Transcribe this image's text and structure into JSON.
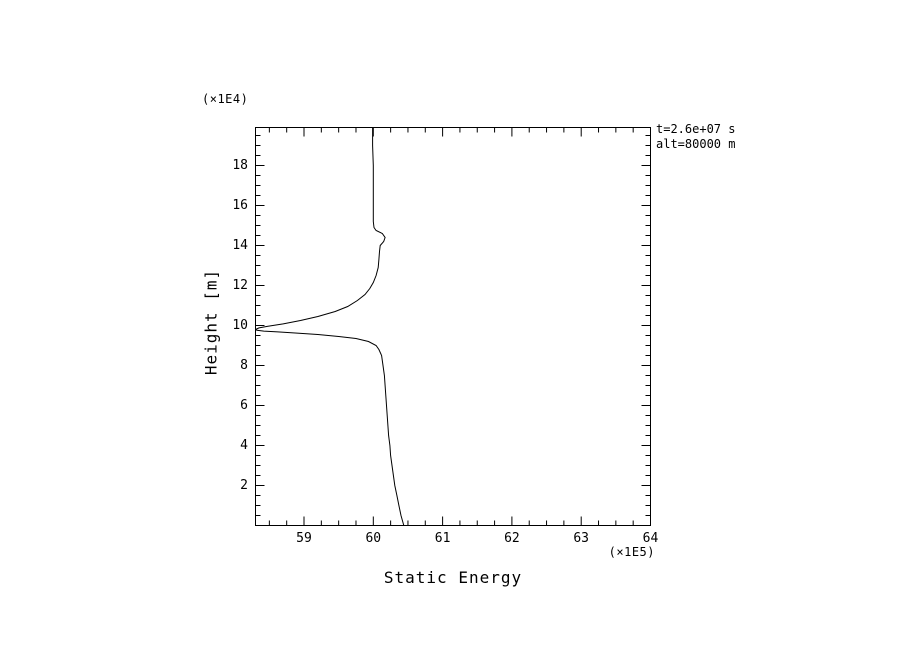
{
  "page": {
    "background": "#ffffff",
    "text_color": "#000000"
  },
  "chart_data": {
    "type": "line",
    "title": "",
    "xlabel": "Static Energy",
    "ylabel": "Height [m]",
    "x_scale_label": "(×1E5)",
    "y_scale_label": "(×1E4)",
    "xlim": [
      58.3,
      64.0
    ],
    "ylim": [
      0.0,
      19.9
    ],
    "x_ticks": [
      59,
      60,
      61,
      62,
      63,
      64
    ],
    "y_ticks": [
      2,
      4,
      6,
      8,
      10,
      12,
      14,
      16,
      18
    ],
    "x_minor_step": 0.25,
    "y_minor_step": 0.5,
    "grid": false,
    "legend": "none",
    "line_color": "#000000",
    "annotations": [
      "t=2.6e+07 s",
      "alt=80000 m"
    ],
    "series": [
      {
        "name": "static-energy-profile",
        "color": "#000000",
        "points": [
          [
            60.44,
            0.0
          ],
          [
            60.4,
            0.5
          ],
          [
            60.37,
            1.0
          ],
          [
            60.34,
            1.5
          ],
          [
            60.31,
            2.0
          ],
          [
            60.29,
            2.5
          ],
          [
            60.27,
            3.0
          ],
          [
            60.25,
            3.5
          ],
          [
            60.24,
            4.0
          ],
          [
            60.22,
            4.5
          ],
          [
            60.21,
            5.0
          ],
          [
            60.2,
            5.5
          ],
          [
            60.19,
            6.0
          ],
          [
            60.18,
            6.5
          ],
          [
            60.17,
            7.0
          ],
          [
            60.16,
            7.5
          ],
          [
            60.14,
            8.0
          ],
          [
            60.12,
            8.5
          ],
          [
            60.08,
            8.8
          ],
          [
            60.04,
            9.0
          ],
          [
            59.93,
            9.2
          ],
          [
            59.75,
            9.35
          ],
          [
            59.5,
            9.45
          ],
          [
            59.2,
            9.55
          ],
          [
            58.9,
            9.62
          ],
          [
            58.62,
            9.68
          ],
          [
            58.42,
            9.72
          ],
          [
            58.32,
            9.76
          ],
          [
            58.3,
            9.8
          ],
          [
            58.35,
            9.88
          ],
          [
            58.48,
            9.96
          ],
          [
            58.7,
            10.08
          ],
          [
            58.95,
            10.25
          ],
          [
            59.2,
            10.45
          ],
          [
            59.45,
            10.7
          ],
          [
            59.63,
            10.95
          ],
          [
            59.77,
            11.25
          ],
          [
            59.88,
            11.55
          ],
          [
            59.95,
            11.85
          ],
          [
            60.0,
            12.15
          ],
          [
            60.04,
            12.5
          ],
          [
            60.07,
            12.9
          ],
          [
            60.08,
            13.3
          ],
          [
            60.09,
            13.7
          ],
          [
            60.1,
            14.0
          ],
          [
            60.15,
            14.2
          ],
          [
            60.17,
            14.4
          ],
          [
            60.13,
            14.6
          ],
          [
            60.04,
            14.75
          ],
          [
            60.01,
            14.9
          ],
          [
            60.0,
            15.2
          ],
          [
            60.0,
            16.0
          ],
          [
            60.0,
            17.0
          ],
          [
            60.0,
            18.0
          ],
          [
            59.99,
            19.0
          ],
          [
            59.99,
            19.9
          ]
        ]
      }
    ]
  }
}
